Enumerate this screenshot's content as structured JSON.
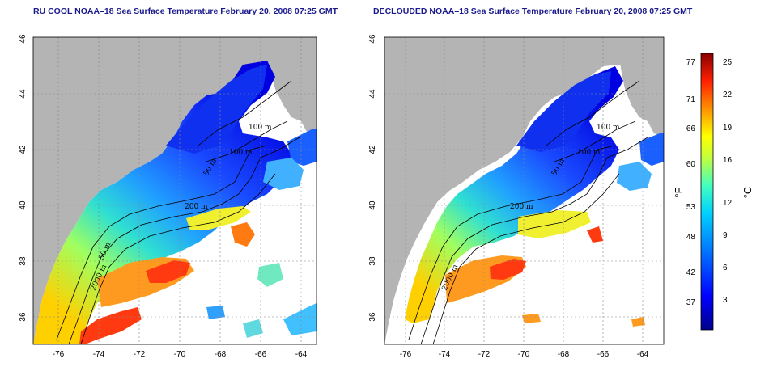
{
  "panels": [
    {
      "title": "RU COOL NOAA–18 Sea Surface Temperature February 20, 2008 07:25 GMT",
      "contour_labels": [
        "100 m",
        "100 m",
        "50 m",
        "200 m",
        "50 m",
        "2000 m"
      ]
    },
    {
      "title": "DECLOUDED NOAA–18 Sea Surface Temperature February 20, 2008 07:25 GMT",
      "contour_labels": [
        "100 m",
        "100 m",
        "50 m",
        "200 m",
        "2000 m"
      ]
    }
  ],
  "axes": {
    "x_ticks": [
      "-76",
      "-74",
      "-72",
      "-70",
      "-68",
      "-66",
      "-64"
    ],
    "y_ticks": [
      "36",
      "38",
      "40",
      "42",
      "44",
      "46"
    ]
  },
  "colorbar": {
    "fahrenheit_ticks": [
      "77",
      "71",
      "66",
      "60",
      "53",
      "48",
      "42",
      "37"
    ],
    "celsius_ticks": [
      "25",
      "22",
      "19",
      "16",
      "12",
      "9",
      "6",
      "3"
    ],
    "fahrenheit_unit": "°F",
    "celsius_unit": "°C"
  },
  "colors": {
    "land": "#b4b4b4",
    "no_data": "#ffffff",
    "title": "#1a1a8c"
  }
}
